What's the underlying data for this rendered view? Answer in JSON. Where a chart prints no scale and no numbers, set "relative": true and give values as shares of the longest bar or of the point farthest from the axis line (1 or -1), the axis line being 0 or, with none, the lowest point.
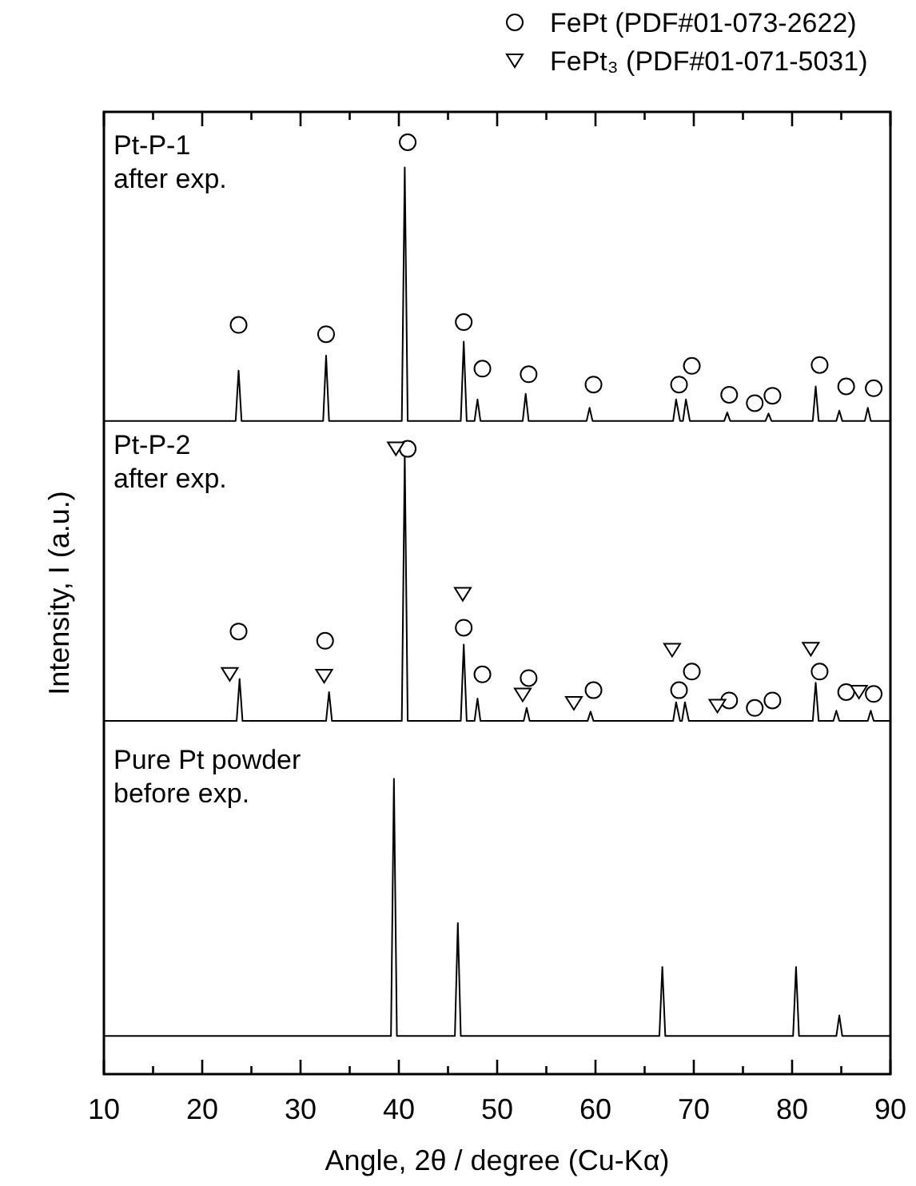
{
  "chart_data": {
    "type": "line",
    "relative": true,
    "xlabel": "Angle, 2θ / degree (Cu-Kα)",
    "ylabel": "Intensity, I (a.u.)",
    "xlim": [
      10,
      90
    ],
    "xticks": [
      10,
      {
        "value": 15,
        "label": null
      },
      20,
      {
        "value": 25,
        "label": null
      },
      30,
      {
        "value": 35,
        "label": null
      },
      40,
      {
        "value": 45,
        "label": null
      },
      50,
      {
        "value": 55,
        "label": null
      },
      60,
      {
        "value": 65,
        "label": null
      },
      70,
      {
        "value": 75,
        "label": null
      },
      80,
      {
        "value": 85,
        "label": null
      },
      90
    ],
    "legend": "top right",
    "grid": false,
    "annotations": [
      "Pt-P-1\nafter exp.",
      "Pt-P-2\nafter exp.",
      "Pure Pt powder\nbefore exp."
    ],
    "series": [
      {
        "color": "#000000",
        "x": [
          10,
          23.4,
          23.7,
          24.0,
          32.3,
          32.6,
          32.9,
          40.3,
          40.6,
          40.9,
          46.3,
          46.6,
          46.9,
          47.7,
          48.0,
          48.3,
          52.6,
          52.9,
          53.2,
          59.1,
          59.4,
          59.7,
          67.9,
          68.2,
          68.6,
          68.9,
          69.2,
          69.6,
          73.1,
          73.4,
          73.7,
          77.3,
          77.6,
          77.9,
          82.1,
          82.4,
          82.7,
          84.5,
          84.8,
          85.1,
          87.4,
          87.7,
          88.0,
          90
        ],
        "values": [
          0.701,
          0.701,
          0.755,
          0.701,
          0.701,
          0.771,
          0.701,
          0.701,
          0.973,
          0.701,
          0.701,
          0.786,
          0.701,
          0.701,
          0.724,
          0.701,
          0.701,
          0.73,
          0.701,
          0.701,
          0.715,
          0.701,
          0.701,
          0.724,
          0.701,
          0.701,
          0.724,
          0.701,
          0.701,
          0.71,
          0.701,
          0.701,
          0.709,
          0.701,
          0.701,
          0.738,
          0.701,
          0.701,
          0.712,
          0.701,
          0.701,
          0.715,
          0.701,
          0.701
        ]
      },
      {
        "color": "#000000",
        "x": [
          10,
          23.5,
          23.8,
          24.1,
          32.6,
          32.9,
          33.2,
          40.3,
          40.6,
          40.9,
          46.3,
          46.6,
          46.9,
          47.7,
          48.0,
          48.3,
          52.7,
          53.0,
          53.3,
          59.2,
          59.5,
          59.8,
          67.9,
          68.2,
          68.6,
          68.8,
          69.1,
          69.5,
          82.1,
          82.4,
          82.7,
          84.2,
          84.5,
          84.8,
          87.7,
          88.0,
          88.3,
          90
        ],
        "values": [
          0.379,
          0.379,
          0.424,
          0.379,
          0.379,
          0.41,
          0.379,
          0.379,
          0.665,
          0.379,
          0.379,
          0.461,
          0.379,
          0.379,
          0.403,
          0.379,
          0.379,
          0.393,
          0.379,
          0.379,
          0.389,
          0.379,
          0.379,
          0.399,
          0.379,
          0.379,
          0.399,
          0.379,
          0.379,
          0.42,
          0.379,
          0.379,
          0.39,
          0.379,
          0.379,
          0.39,
          0.379,
          0.379
        ]
      },
      {
        "color": "#000000",
        "x": [
          10,
          39.2,
          39.5,
          39.8,
          45.7,
          46.0,
          46.3,
          66.5,
          66.8,
          67.1,
          80.1,
          80.4,
          80.7,
          84.5,
          84.8,
          85.1,
          90
        ],
        "values": [
          0.041,
          0.041,
          0.317,
          0.041,
          0.041,
          0.162,
          0.041,
          0.041,
          0.115,
          0.041,
          0.041,
          0.115,
          0.041,
          0.041,
          0.063,
          0.041,
          0.041
        ]
      },
      {
        "name": "FePt (PDF#01-073-2622)",
        "type": "scatter",
        "marker": "circle",
        "color": "#000000",
        "x": [
          23.7,
          32.6,
          40.9,
          46.6,
          48.5,
          53.2,
          59.8,
          68.5,
          69.8,
          73.6,
          76.2,
          78.0,
          82.8,
          85.5,
          88.3,
          23.7,
          32.5,
          40.9,
          46.6,
          48.5,
          53.2,
          59.8,
          68.5,
          69.8,
          73.6,
          76.2,
          78.0,
          82.8,
          85.5,
          88.3
        ],
        "values": [
          0.804,
          0.794,
          1.0,
          0.807,
          0.757,
          0.751,
          0.74,
          0.74,
          0.76,
          0.729,
          0.72,
          0.728,
          0.761,
          0.738,
          0.736,
          0.475,
          0.465,
          0.671,
          0.479,
          0.429,
          0.425,
          0.412,
          0.412,
          0.432,
          0.401,
          0.393,
          0.401,
          0.432,
          0.41,
          0.408
        ]
      },
      {
        "name": "FePt₃ (PDF#01-071-5031)",
        "type": "scatter",
        "marker": "triangle",
        "color": "#000000",
        "x": [
          22.8,
          32.4,
          39.7,
          46.5,
          52.6,
          57.8,
          67.8,
          72.4,
          81.9,
          86.8
        ],
        "values": [
          0.429,
          0.427,
          0.671,
          0.515,
          0.407,
          0.398,
          0.455,
          0.395,
          0.456,
          0.41
        ]
      }
    ]
  }
}
